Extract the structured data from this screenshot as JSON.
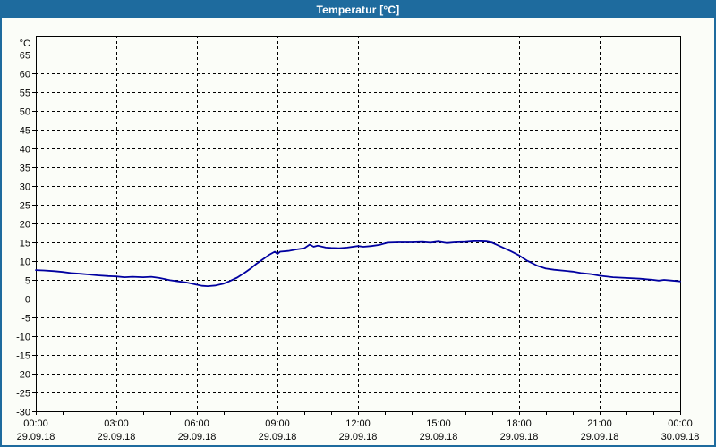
{
  "window": {
    "title": "Temperatur [°C]"
  },
  "colors": {
    "titlebar_bg": "#1e6b9e",
    "titlebar_text": "#ffffff",
    "window_border": "#1e6b9e",
    "background": "#fbfdf8",
    "grid": "#000000",
    "axis": "#000000",
    "line": "#0000a0",
    "label_text": "#000000"
  },
  "chart_data": {
    "type": "line",
    "title": "Temperatur [°C]",
    "y_unit_label": "°C",
    "ylim": [
      -30,
      70
    ],
    "y_tick_step": 5,
    "y_tick_values": [
      65,
      60,
      55,
      50,
      45,
      40,
      35,
      30,
      25,
      20,
      15,
      10,
      5,
      0,
      -5,
      -10,
      -15,
      -20,
      -25,
      -30
    ],
    "xlim_hours": [
      0,
      24
    ],
    "x_minor_tick_hours": 1,
    "x_major_ticks": [
      {
        "hour": 0,
        "time": "00:00",
        "date": "29.09.18"
      },
      {
        "hour": 3,
        "time": "03:00",
        "date": "29.09.18"
      },
      {
        "hour": 6,
        "time": "06:00",
        "date": "29.09.18"
      },
      {
        "hour": 9,
        "time": "09:00",
        "date": "29.09.18"
      },
      {
        "hour": 12,
        "time": "12:00",
        "date": "29.09.18"
      },
      {
        "hour": 15,
        "time": "15:00",
        "date": "29.09.18"
      },
      {
        "hour": 18,
        "time": "18:00",
        "date": "29.09.18"
      },
      {
        "hour": 21,
        "time": "21:00",
        "date": "29.09.18"
      },
      {
        "hour": 24,
        "time": "00:00",
        "date": "30.09.18"
      }
    ],
    "grid": "dashed",
    "legend": "none",
    "series": [
      {
        "name": "Temperatur",
        "color": "#0000a0",
        "points": [
          [
            0.0,
            7.6
          ],
          [
            0.3,
            7.5
          ],
          [
            0.7,
            7.3
          ],
          [
            1.0,
            7.1
          ],
          [
            1.3,
            6.8
          ],
          [
            1.7,
            6.6
          ],
          [
            2.0,
            6.4
          ],
          [
            2.3,
            6.2
          ],
          [
            2.7,
            6.0
          ],
          [
            3.0,
            5.9
          ],
          [
            3.3,
            5.7
          ],
          [
            3.6,
            5.8
          ],
          [
            4.0,
            5.7
          ],
          [
            4.3,
            5.8
          ],
          [
            4.6,
            5.5
          ],
          [
            5.0,
            4.9
          ],
          [
            5.3,
            4.6
          ],
          [
            5.6,
            4.3
          ],
          [
            6.0,
            3.7
          ],
          [
            6.2,
            3.4
          ],
          [
            6.4,
            3.3
          ],
          [
            6.7,
            3.5
          ],
          [
            7.0,
            4.0
          ],
          [
            7.2,
            4.6
          ],
          [
            7.5,
            5.6
          ],
          [
            7.8,
            7.0
          ],
          [
            8.0,
            8.0
          ],
          [
            8.2,
            9.2
          ],
          [
            8.5,
            10.7
          ],
          [
            8.7,
            11.7
          ],
          [
            8.9,
            12.5
          ],
          [
            9.0,
            11.9
          ],
          [
            9.1,
            12.5
          ],
          [
            9.4,
            12.7
          ],
          [
            9.7,
            13.1
          ],
          [
            10.0,
            13.4
          ],
          [
            10.2,
            14.4
          ],
          [
            10.35,
            13.8
          ],
          [
            10.5,
            14.1
          ],
          [
            10.8,
            13.6
          ],
          [
            11.0,
            13.5
          ],
          [
            11.3,
            13.4
          ],
          [
            11.6,
            13.6
          ],
          [
            12.0,
            14.0
          ],
          [
            12.2,
            13.8
          ],
          [
            12.5,
            14.0
          ],
          [
            12.8,
            14.3
          ],
          [
            13.1,
            14.9
          ],
          [
            13.5,
            15.0
          ],
          [
            14.0,
            15.0
          ],
          [
            14.4,
            15.1
          ],
          [
            14.7,
            14.9
          ],
          [
            15.0,
            15.2
          ],
          [
            15.3,
            14.8
          ],
          [
            15.6,
            15.0
          ],
          [
            16.0,
            15.1
          ],
          [
            16.4,
            15.3
          ],
          [
            16.8,
            15.2
          ],
          [
            17.0,
            14.9
          ],
          [
            17.3,
            13.9
          ],
          [
            17.7,
            12.6
          ],
          [
            18.0,
            11.5
          ],
          [
            18.3,
            10.1
          ],
          [
            18.7,
            8.7
          ],
          [
            19.0,
            8.0
          ],
          [
            19.3,
            7.7
          ],
          [
            19.7,
            7.4
          ],
          [
            20.0,
            7.2
          ],
          [
            20.3,
            6.8
          ],
          [
            20.7,
            6.5
          ],
          [
            21.0,
            6.1
          ],
          [
            21.5,
            5.7
          ],
          [
            22.0,
            5.5
          ],
          [
            22.5,
            5.3
          ],
          [
            23.0,
            5.0
          ],
          [
            23.2,
            4.8
          ],
          [
            23.4,
            5.0
          ],
          [
            23.7,
            4.8
          ],
          [
            24.0,
            4.6
          ]
        ]
      }
    ]
  }
}
